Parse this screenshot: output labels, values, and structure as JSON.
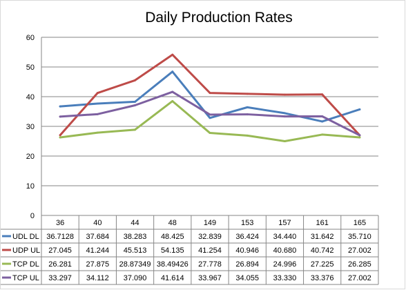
{
  "chart_data": {
    "type": "line",
    "title": "Daily Production Rates",
    "xlabel": "",
    "ylabel": "",
    "ylim": [
      0,
      60
    ],
    "yticks": [
      "0",
      "10",
      "20",
      "30",
      "40",
      "50",
      "60"
    ],
    "grid": true,
    "legend": "data-table-left",
    "categories": [
      "36",
      "40",
      "44",
      "48",
      "149",
      "153",
      "157",
      "161",
      "165"
    ],
    "series": [
      {
        "name": "UDL DL",
        "color": "#4a7ebb",
        "values": [
          36.7128,
          37.684,
          38.283,
          48.425,
          32.839,
          36.424,
          34.44,
          31.642,
          35.71
        ],
        "labels": [
          "36.7128",
          "37.684",
          "38.283",
          "48.425",
          "32.839",
          "36.424",
          "34.440",
          "31.642",
          "35.710"
        ]
      },
      {
        "name": "UDP UL",
        "color": "#be4b48",
        "values": [
          27.045,
          41.244,
          45.513,
          54.135,
          41.254,
          40.946,
          40.68,
          40.742,
          27.002
        ],
        "labels": [
          "27.045",
          "41.244",
          "45.513",
          "54.135",
          "41.254",
          "40.946",
          "40.680",
          "40.742",
          "27.002"
        ]
      },
      {
        "name": "TCP DL",
        "color": "#98b954",
        "values": [
          26.281,
          27.875,
          28.87349,
          38.49426,
          27.778,
          26.894,
          24.996,
          27.225,
          26.285
        ],
        "labels": [
          "26.281",
          "27.875",
          "28.87349",
          "38.49426",
          "27.778",
          "26.894",
          "24.996",
          "27.225",
          "26.285"
        ]
      },
      {
        "name": "TCP UL",
        "color": "#7d60a0",
        "values": [
          33.297,
          34.112,
          37.09,
          41.614,
          33.967,
          34.055,
          33.33,
          33.376,
          27.002
        ],
        "labels": [
          "33.297",
          "34.112",
          "37.090",
          "41.614",
          "33.967",
          "34.055",
          "33.330",
          "33.376",
          "27.002"
        ]
      }
    ]
  }
}
